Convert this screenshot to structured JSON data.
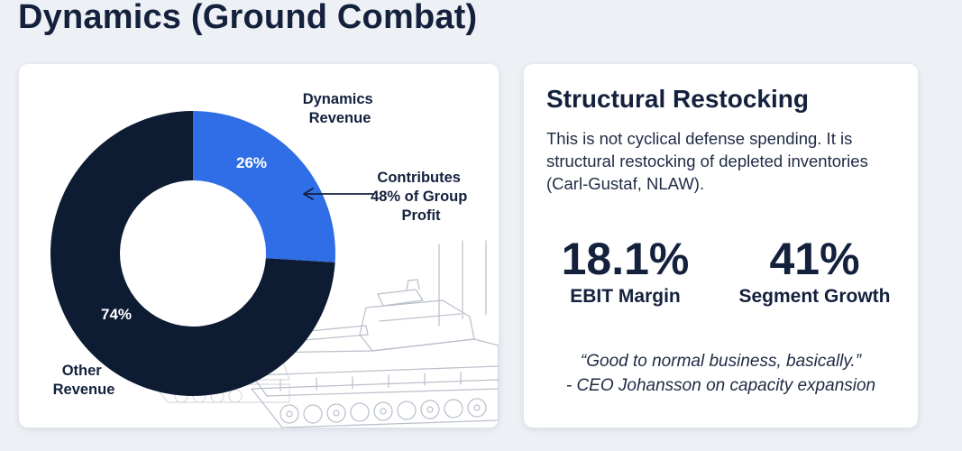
{
  "page": {
    "title": "Dynamics (Ground Combat)"
  },
  "chart_data": {
    "type": "pie",
    "donut": true,
    "slices": [
      {
        "label": "Dynamics Revenue",
        "value": 26,
        "value_label": "26%",
        "color": "#2f6ee6"
      },
      {
        "label": "Other Revenue",
        "value": 74,
        "value_label": "74%",
        "color": "#0d1b33"
      }
    ],
    "annotation": "Contributes 48% of Group Profit",
    "annotation_lines": [
      "Contributes",
      "48% of Group",
      "Profit"
    ],
    "legend_labels": {
      "dynamics": [
        "Dynamics",
        "Revenue"
      ],
      "other": [
        "Other",
        "Revenue"
      ]
    }
  },
  "panel": {
    "title": "Structural Restocking",
    "body": "This is not cyclical defense spending. It is structural restocking of depleted inventories (Carl-Gustaf, NLAW).",
    "metrics": [
      {
        "value": "18.1%",
        "label": "EBIT Margin"
      },
      {
        "value": "41%",
        "label": "Segment Growth"
      }
    ],
    "quote": "“Good to normal business, basically.”",
    "quote_attribution": "- CEO Johansson on capacity expansion"
  }
}
